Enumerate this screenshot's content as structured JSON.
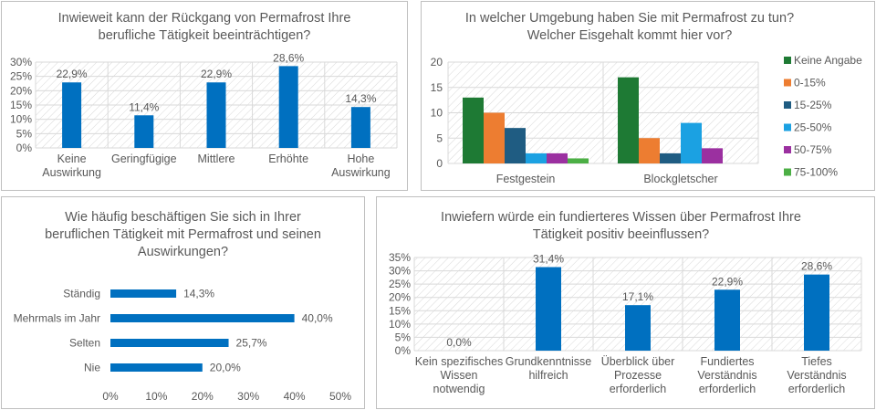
{
  "colors": {
    "primary_bar": "#0070c0",
    "keine_angabe": "#1e7a34",
    "p0_15": "#ed7d31",
    "p15_25": "#1f5c82",
    "p25_50": "#1ba1e2",
    "p50_75": "#9b30a0",
    "p75_100": "#4caf45",
    "gridline": "#d9d9d9",
    "text": "#595959"
  },
  "chart_data": [
    {
      "type": "bar",
      "title": "Inwieweit kann der Rückgang von Permafrost Ihre berufliche Tätigkeit beeinträchtigen?",
      "title_lines": [
        "Inwieweit kann der Rückgang von Permafrost Ihre",
        "berufliche Tätigkeit beeinträchtigen?"
      ],
      "categories": [
        "Keine Auswirkung",
        "Geringfügige",
        "Mittlere",
        "Erhöhte",
        "Hohe Auswirkung"
      ],
      "category_lines": [
        [
          "Keine",
          "Auswirkung"
        ],
        [
          "Geringfügige"
        ],
        [
          "Mittlere"
        ],
        [
          "Erhöhte"
        ],
        [
          "Hohe",
          "Auswirkung"
        ]
      ],
      "values": [
        22.9,
        11.4,
        22.9,
        28.6,
        14.3
      ],
      "data_labels": [
        "22,9%",
        "11,4%",
        "22,9%",
        "28,6%",
        "14,3%"
      ],
      "ylim": [
        0,
        30
      ],
      "yticks": [
        "0%",
        "5%",
        "10%",
        "15%",
        "20%",
        "25%",
        "30%"
      ],
      "grid": true,
      "legend": "none"
    },
    {
      "type": "bar",
      "title": "In welcher Umgebung haben Sie mit Permafrost zu tun? Welcher Eisgehalt kommt hier vor?",
      "title_lines": [
        "In welcher Umgebung haben Sie mit Permafrost zu tun?",
        "Welcher Eisgehalt kommt hier vor?"
      ],
      "categories": [
        "Festgestein",
        "Blockgletscher"
      ],
      "series": [
        {
          "name": "Keine Angabe",
          "values": [
            13,
            17
          ]
        },
        {
          "name": "0-15%",
          "values": [
            10,
            5
          ]
        },
        {
          "name": "15-25%",
          "values": [
            7,
            2
          ]
        },
        {
          "name": "25-50%",
          "values": [
            2,
            8
          ]
        },
        {
          "name": "50-75%",
          "values": [
            2,
            3
          ]
        },
        {
          "name": "75-100%",
          "values": [
            1,
            0
          ]
        }
      ],
      "ylim": [
        0,
        20
      ],
      "yticks": [
        "0",
        "5",
        "10",
        "15",
        "20"
      ],
      "grid": true,
      "legend": "right"
    },
    {
      "type": "bar",
      "orientation": "horizontal",
      "title": "Wie häufig beschäftigen Sie sich in Ihrer beruflichen Tätigkeit mit Permafrost und seinen Auswirkungen?",
      "title_lines": [
        "Wie häufig beschäftigen Sie sich in Ihrer",
        "beruflichen Tätigkeit mit Permafrost und seinen",
        "Auswirkungen?"
      ],
      "categories": [
        "Ständig",
        "Mehrmals im Jahr",
        "Selten",
        "Nie"
      ],
      "values": [
        14.3,
        40.0,
        25.7,
        20.0
      ],
      "data_labels": [
        "14,3%",
        "40,0%",
        "25,7%",
        "20,0%"
      ],
      "xlim": [
        0,
        50
      ],
      "xticks": [
        "0%",
        "10%",
        "20%",
        "30%",
        "40%",
        "50%"
      ],
      "grid": false,
      "legend": "none"
    },
    {
      "type": "bar",
      "title": "Inwiefern würde ein fundierteres Wissen über Permafrost Ihre Tätigkeit positiv beeinflussen?",
      "title_lines": [
        "Inwiefern würde ein fundierteres Wissen über Permafrost Ihre",
        "Tätigkeit positiv beeinflussen?"
      ],
      "categories": [
        "Kein spezifisches Wissen notwendig",
        "Grundkenntnisse hilfreich",
        "Überblick über Prozesse erforderlich",
        "Fundiertes Verständnis erforderlich",
        "Tiefes Verständnis erforderlich"
      ],
      "category_lines": [
        [
          "Kein spezifisches",
          "Wissen",
          "notwendig"
        ],
        [
          "Grundkenntnisse",
          "hilfreich"
        ],
        [
          "Überblick über",
          "Prozesse",
          "erforderlich"
        ],
        [
          "Fundiertes",
          "Verständnis",
          "erforderlich"
        ],
        [
          "Tiefes",
          "Verständnis",
          "erforderlich"
        ]
      ],
      "values": [
        0.0,
        31.4,
        17.1,
        22.9,
        28.6
      ],
      "data_labels": [
        "0,0%",
        "31,4%",
        "17,1%",
        "22,9%",
        "28,6%"
      ],
      "ylim": [
        0,
        35
      ],
      "yticks": [
        "0%",
        "5%",
        "10%",
        "15%",
        "20%",
        "25%",
        "30%",
        "35%"
      ],
      "grid": true,
      "legend": "none"
    }
  ]
}
